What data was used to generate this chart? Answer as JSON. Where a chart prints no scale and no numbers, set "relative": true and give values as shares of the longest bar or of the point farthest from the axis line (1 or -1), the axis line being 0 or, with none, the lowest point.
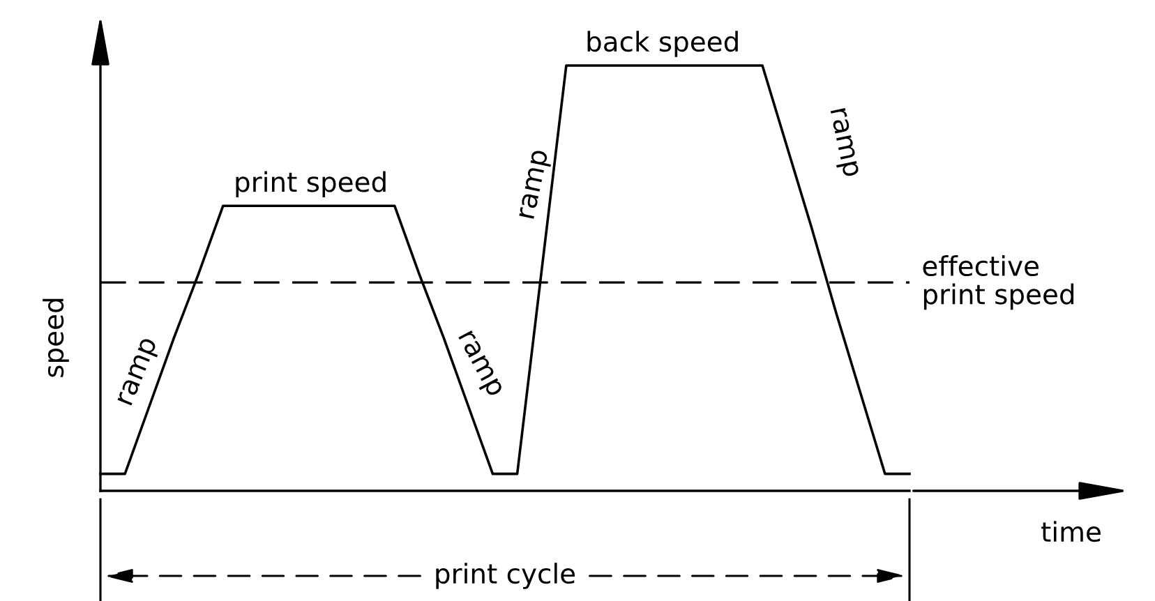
{
  "chart_data": {
    "type": "line",
    "relative": true,
    "xlabel": "time",
    "ylabel": "speed",
    "categories": [
      null,
      null,
      null,
      null,
      null,
      null,
      null,
      null,
      null,
      null,
      null,
      null,
      null,
      null,
      null,
      null,
      null,
      null,
      null,
      null,
      null,
      null,
      null,
      null,
      null,
      null,
      null,
      null,
      null,
      null,
      null,
      null,
      null,
      null
    ],
    "series": [
      {
        "color": "#000000",
        "values": [
          0.04,
          0.04,
          0.2,
          0.36,
          0.51,
          0.67,
          0.67,
          0.67,
          0.67,
          0.67,
          0.67,
          0.67,
          0.67,
          0.51,
          0.36,
          0.2,
          0.04,
          0.04,
          0.52,
          1,
          1,
          1,
          1,
          1,
          1,
          1,
          1,
          1,
          0.81,
          0.62,
          0.42,
          0.23,
          0.04,
          0.04
        ]
      }
    ],
    "ref_lines": [
      {
        "axis": "y",
        "value": 0.49,
        "label": "effective print speed",
        "color": "#000000",
        "line_style": "dashed"
      }
    ],
    "annotations": [
      "print speed",
      "back speed",
      "ramp",
      "ramp",
      "ramp",
      "ramp",
      "print cycle"
    ],
    "line_style": "solid",
    "marker": "none",
    "legend": false
  }
}
